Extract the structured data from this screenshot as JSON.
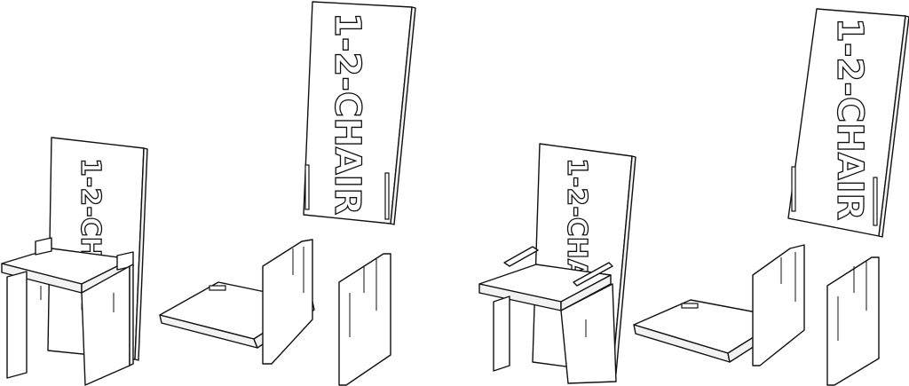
{
  "illustration": {
    "backrest_text": "1-2-CHAIR",
    "stroke_color": "#111111",
    "background_color": "#ffffff"
  }
}
